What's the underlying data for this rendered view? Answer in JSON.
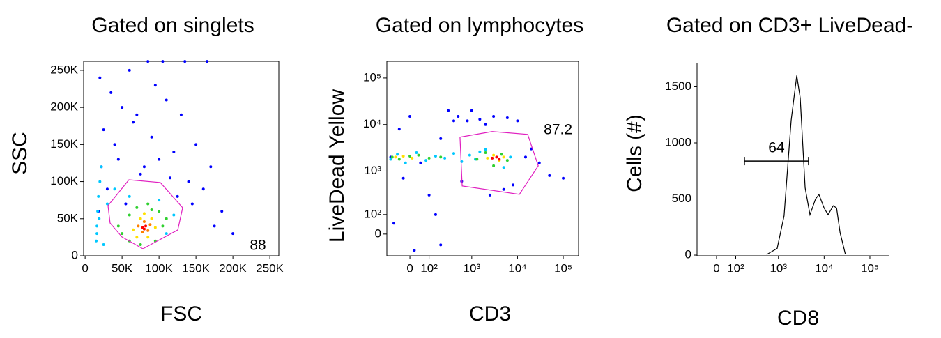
{
  "chart_data": [
    {
      "type": "scatter",
      "title": "Gated on singlets",
      "xlabel": "FSC",
      "ylabel": "SSC",
      "xscale": "linear",
      "yscale": "linear",
      "xlim": [
        -2000,
        262144
      ],
      "ylim": [
        0,
        262144
      ],
      "xticks": [
        0,
        {
          "value": 50000,
          "label": "50K"
        },
        {
          "value": 100000,
          "label": "100K"
        },
        {
          "value": 150000,
          "label": "150K"
        },
        {
          "value": 200000,
          "label": "200K"
        },
        {
          "value": 250000,
          "label": "250K"
        }
      ],
      "yticks": [
        0,
        {
          "value": 50000,
          "label": "50K"
        },
        {
          "value": 100000,
          "label": "100K"
        },
        {
          "value": 150000,
          "label": "150K"
        },
        {
          "value": 200000,
          "label": "200K"
        },
        {
          "value": 250000,
          "label": "250K"
        }
      ],
      "series": [
        {
          "color": "#0000ff",
          "x": [
            20000,
            35000,
            50000,
            65000,
            90000,
            110000,
            130000,
            150000,
            170000,
            25000,
            45000,
            60000,
            75000,
            95000,
            120000,
            140000,
            160000,
            185000,
            30000,
            55000,
            80000,
            100000,
            125000,
            18000,
            40000,
            70000,
            115000,
            145000,
            175000,
            22000,
            200000,
            85000,
            105000,
            135000,
            165000
          ],
          "values": [
            240000,
            220000,
            200000,
            180000,
            160000,
            210000,
            190000,
            150000,
            120000,
            170000,
            130000,
            250000,
            110000,
            230000,
            140000,
            100000,
            90000,
            60000,
            90000,
            70000,
            120000,
            130000,
            80000,
            60000,
            150000,
            190000,
            105000,
            70000,
            40000,
            120000,
            30000,
            262000,
            262000,
            262000,
            262000
          ]
        },
        {
          "color": "#00c8ff",
          "x": [
            15000,
            16000,
            17000,
            18000,
            20000,
            22000,
            16000,
            19000,
            25000,
            30000,
            110000,
            120000,
            60000,
            100000,
            40000
          ],
          "values": [
            20000,
            40000,
            60000,
            80000,
            100000,
            120000,
            30000,
            50000,
            15000,
            70000,
            30000,
            55000,
            80000,
            75000,
            90000
          ]
        },
        {
          "color": "#30d030",
          "x": [
            50000,
            60000,
            70000,
            100000,
            105000,
            95000,
            60000,
            110000,
            45000,
            85000,
            75000,
            90000
          ],
          "values": [
            30000,
            55000,
            65000,
            60000,
            40000,
            20000,
            20000,
            50000,
            40000,
            70000,
            15000,
            62000
          ]
        },
        {
          "color": "#ffe000",
          "x": [
            65000,
            75000,
            90000,
            95000,
            70000,
            85000,
            80000
          ],
          "values": [
            35000,
            50000,
            50000,
            38000,
            25000,
            25000,
            57000
          ]
        },
        {
          "color": "#ff8000",
          "x": [
            72000,
            80000,
            88000,
            78000,
            85000
          ],
          "values": [
            40000,
            46000,
            42000,
            32000,
            34000
          ]
        },
        {
          "color": "#ff0000",
          "x": [
            78000,
            82000,
            80000
          ],
          "values": [
            38000,
            40000,
            36000
          ]
        }
      ],
      "gate": {
        "label": "88",
        "color": "#e020c0",
        "x": [
          31000,
          59300,
          101800,
          132000,
          125400,
          78200,
          49900,
          33800
        ],
        "y": [
          67600,
          102400,
          98700,
          64800,
          34800,
          9400,
          25400,
          44200
        ]
      }
    },
    {
      "type": "scatter",
      "title": "Gated on lymphocytes",
      "xlabel": "CD3",
      "ylabel": "LiveDead Yellow",
      "xscale": "biexponential",
      "yscale": "biexponential",
      "xlim": [
        -128,
        216000
      ],
      "ylim": [
        -115,
        228000
      ],
      "xticks": [
        0,
        {
          "value": 100,
          "label": "10²"
        },
        {
          "value": 1000,
          "label": "10³"
        },
        {
          "value": 10000,
          "label": "10⁴"
        },
        {
          "value": 100000,
          "label": "10⁵"
        }
      ],
      "yticks": [
        0,
        {
          "value": 100,
          "label": "10²"
        },
        {
          "value": 1000,
          "label": "10³"
        },
        {
          "value": 10000,
          "label": "10⁴"
        },
        {
          "value": 100000,
          "label": "10⁵"
        }
      ],
      "series": [
        {
          "color": "#0000ff",
          "x": [
            -100,
            -50,
            0,
            50,
            100,
            200,
            300,
            500,
            800,
            1500,
            3000,
            6000,
            10000,
            20000,
            50000,
            100000,
            -80,
            20,
            150,
            400,
            1000,
            2000,
            5000,
            8000,
            15000,
            30000,
            200,
            600,
            2500,
            -30
          ],
          "values": [
            2000,
            8000,
            15000,
            1500,
            300,
            -50,
            20000,
            15000,
            12000,
            13000,
            15000,
            14000,
            12000,
            3000,
            800,
            700,
            50,
            -80,
            100,
            12000,
            20000,
            10000,
            400,
            500,
            2000,
            1500,
            5000,
            600,
            300,
            700
          ]
        },
        {
          "color": "#00c8ff",
          "x": [
            -100,
            -60,
            -20,
            30,
            80,
            150,
            250,
            400,
            600,
            900,
            1200,
            1500,
            2000,
            5000,
            7000
          ],
          "values": [
            1800,
            2300,
            1500,
            2500,
            1700,
            2100,
            1900,
            2400,
            1600,
            2200,
            1800,
            2600,
            2900,
            1200,
            2000
          ]
        },
        {
          "color": "#30d030",
          "x": [
            -90,
            -50,
            0,
            40,
            100,
            200,
            1300,
            2000,
            3000,
            4500,
            6000
          ],
          "values": [
            2000,
            1800,
            2100,
            2200,
            1900,
            2000,
            1800,
            2500,
            1300,
            2300,
            1700
          ]
        },
        {
          "color": "#ffe000",
          "x": [
            -70,
            -30,
            10,
            2200,
            3000,
            4000,
            5000
          ],
          "values": [
            2000,
            2100,
            1900,
            1900,
            2200,
            1700,
            2000
          ]
        },
        {
          "color": "#ff0000",
          "x": [
            2800,
            3500,
            4000
          ],
          "values": [
            1900,
            2000,
            1800
          ]
        }
      ],
      "gate": {
        "label": "87.2",
        "color": "#e020c0",
        "x": [
          550,
          2800,
          16700,
          28400,
          11000,
          615
        ],
        "y": [
          5370,
          7080,
          6160,
          1300,
          311,
          476
        ]
      }
    },
    {
      "type": "line",
      "title": "Gated on CD3+ LiveDead-",
      "xlabel": "CD8",
      "ylabel": "Cells (#)",
      "xscale": "biexponential",
      "yscale": "linear",
      "xlim": [
        -102,
        258000
      ],
      "ylim": [
        -6,
        1714
      ],
      "xticks": [
        0,
        {
          "value": 100,
          "label": "10²"
        },
        {
          "value": 1000,
          "label": "10³"
        },
        {
          "value": 10000,
          "label": "10⁴"
        },
        {
          "value": 100000,
          "label": "10⁵"
        }
      ],
      "yticks": [
        0,
        500,
        1000,
        1500
      ],
      "color": "#000000",
      "x": [
        550,
        940,
        1330,
        1900,
        2520,
        3000,
        3840,
        4900,
        6480,
        7700,
        9960,
        12200,
        15800,
        18700,
        22300,
        29000
      ],
      "values": [
        5,
        60,
        350,
        1200,
        1600,
        1400,
        600,
        360,
        500,
        540,
        420,
        360,
        440,
        420,
        200,
        10
      ],
      "gate": {
        "label": "64",
        "color": "#000000",
        "x": [
          170,
          4560
        ],
        "y": 838
      }
    }
  ]
}
